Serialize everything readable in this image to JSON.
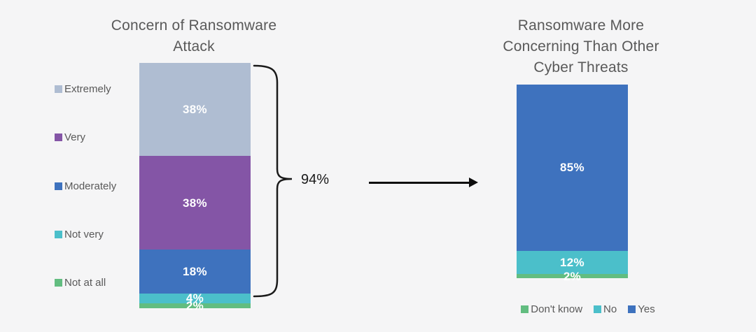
{
  "background_color": "#f5f5f6",
  "text_color": "#595959",
  "bar_label_color": "#ffffff",
  "connector": {
    "brace_label": "94%",
    "brace_color": "#1a1a1a",
    "arrow_direction": "right",
    "arrow_color": "#0d0d0d"
  },
  "chart_data": [
    {
      "type": "bar",
      "subtype": "stacked-percent-column",
      "title": "Concern of Ransomware Attack",
      "title_lines": [
        "Concern of Ransomware",
        "Attack"
      ],
      "categories": [
        "Extremely",
        "Very",
        "Moderately",
        "Not very",
        "Not at all"
      ],
      "values": [
        38,
        38,
        18,
        4,
        2
      ],
      "labels": [
        "38%",
        "38%",
        "18%",
        "4%",
        "2%"
      ],
      "colors": [
        "#afbdd2",
        "#8455a6",
        "#3e72be",
        "#4bbfca",
        "#62bd80"
      ],
      "legend_position": "left",
      "legend_items": [
        {
          "label": "Extremely",
          "color": "#afbdd2"
        },
        {
          "label": "Very",
          "color": "#8455a6"
        },
        {
          "label": "Moderately",
          "color": "#3e72be"
        },
        {
          "label": "Not very",
          "color": "#4bbfca"
        },
        {
          "label": "Not at all",
          "color": "#62bd80"
        }
      ],
      "annotation": {
        "text": "94%",
        "covers_categories": [
          "Extremely",
          "Very",
          "Moderately"
        ]
      }
    },
    {
      "type": "bar",
      "subtype": "stacked-percent-column",
      "title": "Ransomware More Concerning Than Other Cyber Threats",
      "title_lines": [
        "Ransomware More",
        "Concerning Than Other",
        "Cyber Threats"
      ],
      "categories": [
        "Yes",
        "No",
        "Don't know"
      ],
      "values": [
        85,
        12,
        2
      ],
      "labels": [
        "85%",
        "12%",
        "2%"
      ],
      "colors": [
        "#3e72be",
        "#4bbfca",
        "#62bd80"
      ],
      "legend_position": "bottom",
      "legend_items": [
        {
          "label": "Don't know",
          "color": "#62bd80"
        },
        {
          "label": "No",
          "color": "#4bbfca"
        },
        {
          "label": "Yes",
          "color": "#3e72be"
        }
      ]
    }
  ]
}
